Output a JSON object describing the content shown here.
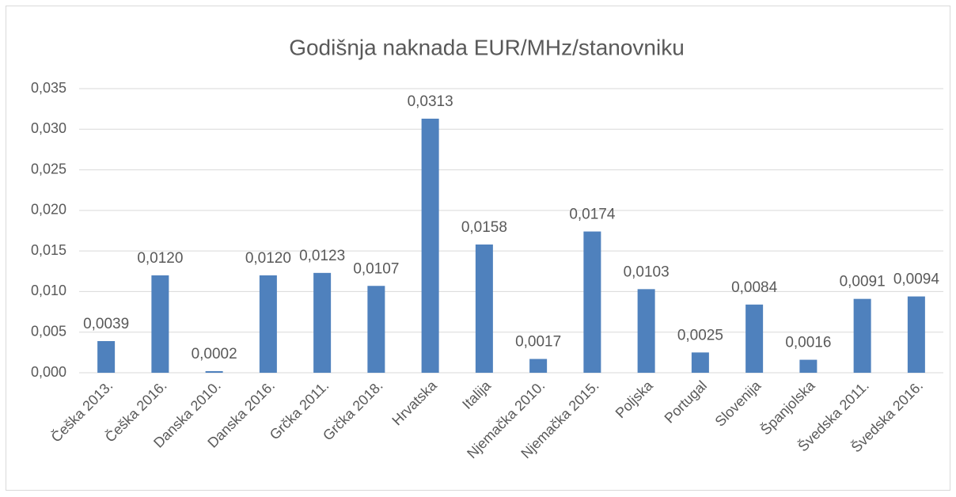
{
  "chart_data": {
    "type": "bar",
    "title": "Godišnja naknada EUR/MHz/stanovniku",
    "categories": [
      "Češka 2013.",
      "Češka 2016.",
      "Danska 2010.",
      "Danska 2016.",
      "Grčka 2011.",
      "Grčka 2018.",
      "Hrvatska",
      "Italija",
      "Njemačka 2010.",
      "Njemačka 2015.",
      "Poljska",
      "Portugal",
      "Slovenija",
      "Španjolska",
      "Švedska 2011.",
      "Švedska 2016."
    ],
    "values": [
      0.0039,
      0.012,
      0.0002,
      0.012,
      0.0123,
      0.0107,
      0.0313,
      0.0158,
      0.0017,
      0.0174,
      0.0103,
      0.0025,
      0.0084,
      0.0016,
      0.0091,
      0.0094
    ],
    "value_labels": [
      "0,0039",
      "0,0120",
      "0,0002",
      "0,0120",
      "0,0123",
      "0,0107",
      "0,0313",
      "0,0158",
      "0,0017",
      "0,0174",
      "0,0103",
      "0,0025",
      "0,0084",
      "0,0016",
      "0,0091",
      "0,0094"
    ],
    "color": "#4f81bd",
    "ylim": [
      0,
      0.035
    ],
    "yticks": [
      {
        "value": 0,
        "label": "0,000"
      },
      {
        "value": 0.005,
        "label": "0,005"
      },
      {
        "value": 0.01,
        "label": "0,010"
      },
      {
        "value": 0.015,
        "label": "0,015"
      },
      {
        "value": 0.02,
        "label": "0,020"
      },
      {
        "value": 0.025,
        "label": "0,025"
      },
      {
        "value": 0.03,
        "label": "0,030"
      },
      {
        "value": 0.035,
        "label": "0,035"
      }
    ],
    "grid": true
  }
}
